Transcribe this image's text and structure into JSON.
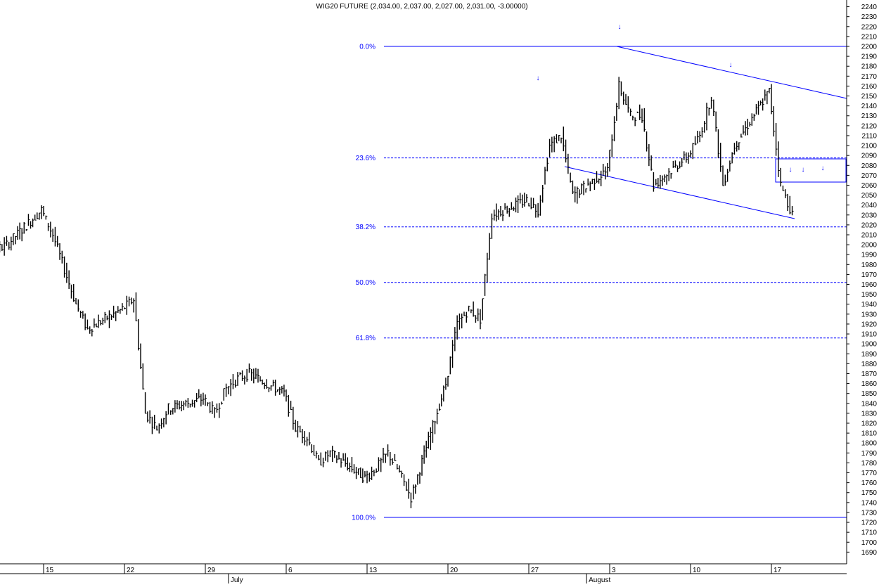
{
  "chart_data": {
    "type": "line",
    "title": "WIG20 FUTURE (2,034.00, 2,037.00, 2,027.00, 2,031.00, -3.00000)",
    "ylim": [
      1680,
      2245
    ],
    "grid": false,
    "colors": {
      "price": "#000000",
      "annotation": "#0000ff"
    },
    "y_ticks": [
      1690,
      1700,
      1710,
      1720,
      1730,
      1740,
      1750,
      1760,
      1770,
      1780,
      1790,
      1800,
      1810,
      1820,
      1830,
      1840,
      1850,
      1860,
      1870,
      1880,
      1890,
      1900,
      1910,
      1920,
      1930,
      1940,
      1950,
      1960,
      1970,
      1980,
      1990,
      2000,
      2010,
      2020,
      2030,
      2040,
      2050,
      2060,
      2070,
      2080,
      2090,
      2100,
      2110,
      2120,
      2130,
      2140,
      2150,
      2160,
      2170,
      2180,
      2190,
      2200,
      2210,
      2220,
      2230,
      2240
    ],
    "x_day_labels": [
      {
        "label": "15",
        "date": "2024-07-15"
      },
      {
        "label": "22",
        "date": "2024-07-22"
      },
      {
        "label": "29",
        "date": "2024-07-29"
      },
      {
        "label": "6",
        "date": "2024-08-05"
      },
      {
        "label": "13",
        "date": "2024-08-12"
      },
      {
        "label": "20",
        "date": "2024-08-19"
      },
      {
        "label": "27",
        "date": "2024-08-26"
      },
      {
        "label": "3",
        "date": "2024-09-02"
      },
      {
        "label": "10",
        "date": "2024-09-09"
      },
      {
        "label": "17",
        "date": "2024-09-16"
      }
    ],
    "x_month_labels": [
      {
        "label": "July",
        "date": "2024-07-31"
      },
      {
        "label": "August",
        "date": "2024-08-31"
      }
    ],
    "series": [
      {
        "x": [
          "2024-07-08",
          "2024-07-09",
          "2024-07-10",
          "2024-07-11",
          "2024-07-12",
          "2024-07-15",
          "2024-07-16",
          "2024-07-17",
          "2024-07-18",
          "2024-07-19",
          "2024-07-22",
          "2024-07-23",
          "2024-07-24",
          "2024-07-25",
          "2024-07-26",
          "2024-07-29",
          "2024-07-30",
          "2024-07-31",
          "2024-08-01",
          "2024-08-02",
          "2024-08-05",
          "2024-08-06",
          "2024-08-07",
          "2024-08-08",
          "2024-08-09",
          "2024-08-12",
          "2024-08-13",
          "2024-08-14",
          "2024-08-15",
          "2024-08-16",
          "2024-08-19",
          "2024-08-20",
          "2024-08-21",
          "2024-08-22",
          "2024-08-23",
          "2024-08-26",
          "2024-08-27",
          "2024-08-28",
          "2024-08-29",
          "2024-08-30",
          "2024-09-02",
          "2024-09-03",
          "2024-09-04",
          "2024-09-05",
          "2024-09-06",
          "2024-09-09",
          "2024-09-10",
          "2024-09-11",
          "2024-09-12",
          "2024-09-13",
          "2024-09-16",
          "2024-09-17",
          "2024-09-18"
        ],
        "values": [
          1935,
          1990,
          2008,
          1995,
          2000,
          2035,
          2010,
          1975,
          1940,
          1915,
          1935,
          1945,
          1830,
          1815,
          1835,
          1845,
          1830,
          1855,
          1865,
          1870,
          1850,
          1815,
          1805,
          1780,
          1790,
          1765,
          1775,
          1790,
          1770,
          1745,
          1860,
          1920,
          1935,
          1925,
          2030,
          2045,
          2035,
          2100,
          2110,
          2050,
          2075,
          2160,
          2130,
          2130,
          2060,
          2090,
          2110,
          2150,
          2060,
          2100,
          2155,
          2060,
          2031
        ]
      }
    ],
    "fib_levels": [
      {
        "label": "0.0%",
        "value": 2200
      },
      {
        "label": "23.6%",
        "value": 2087.5
      },
      {
        "label": "38.2%",
        "value": 2018
      },
      {
        "label": "50.0%",
        "value": 1962
      },
      {
        "label": "61.8%",
        "value": 1906
      },
      {
        "label": "100.0%",
        "value": 1725
      }
    ],
    "arrow_count": 6,
    "arrow_glyph": "↓"
  }
}
